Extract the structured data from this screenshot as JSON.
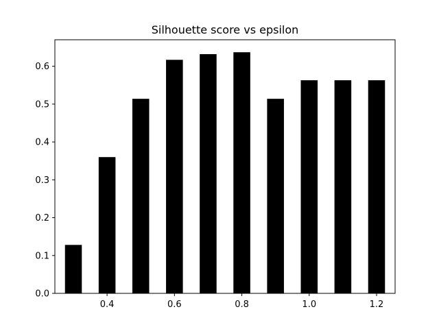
{
  "chart_data": {
    "type": "bar",
    "title": "Silhouette score vs epsilon",
    "xlabel": "",
    "ylabel": "",
    "x": [
      0.3,
      0.4,
      0.5,
      0.6,
      0.7,
      0.8,
      0.9,
      1.0,
      1.1,
      1.2
    ],
    "values": [
      0.128,
      0.36,
      0.514,
      0.617,
      0.632,
      0.637,
      0.514,
      0.563,
      0.563,
      0.563
    ],
    "bar_width": 0.05,
    "xlim": [
      0.245,
      1.255
    ],
    "ylim": [
      0,
      0.67
    ],
    "xticks": [
      0.4,
      0.6,
      0.8,
      1.0,
      1.2
    ],
    "xtick_labels": [
      "0.4",
      "0.6",
      "0.8",
      "1.0",
      "1.2"
    ],
    "yticks": [
      0.0,
      0.1,
      0.2,
      0.3,
      0.4,
      0.5,
      0.6
    ],
    "ytick_labels": [
      "0.0",
      "0.1",
      "0.2",
      "0.3",
      "0.4",
      "0.5",
      "0.6"
    ],
    "grid": false,
    "bar_color": "#000000"
  }
}
